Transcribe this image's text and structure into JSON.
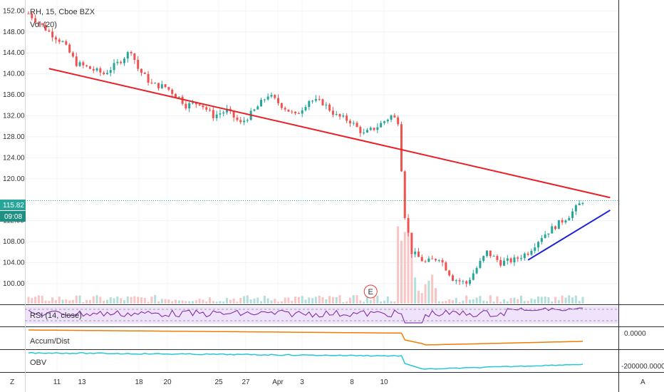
{
  "header": {
    "symbol_line": "RH, 15, Cboe BZX",
    "volume_label": "Vol (20)"
  },
  "price_axis": {
    "ticks": [
      "152.00",
      "148.00",
      "144.00",
      "140.00",
      "136.00",
      "132.00",
      "128.00",
      "124.00",
      "120.00",
      "112.00",
      "108.00",
      "104.00",
      "100.00"
    ],
    "last_price": "115.82",
    "countdown": "09:08",
    "colors": {
      "badge": "#26a69a"
    }
  },
  "indicators": {
    "rsi_label": "RSI (14, close)",
    "ad_label": "Accum/Dist",
    "ad_axis_tick": "0.0000",
    "obv_label": "OBV",
    "obv_axis_tick": "-200000.0000"
  },
  "time_axis": {
    "labels": [
      "11",
      "13",
      "18",
      "20",
      "25",
      "27",
      "Apr",
      "3",
      "8",
      "10"
    ]
  },
  "corner_labels": {
    "left": "Z",
    "right": "A"
  },
  "earnings_marker": "E",
  "colors": {
    "up": "#26a69a",
    "down": "#ef5350",
    "resistance": "#e82127",
    "support": "#1e22d6",
    "rsi": "#7b1fa2",
    "ad": "#f57c00",
    "obv": "#26c6da"
  },
  "chart_data": {
    "type": "candlestick",
    "title": "RH, 15, Cboe BZX",
    "ylim": [
      97,
      153
    ],
    "x_ticks": [
      "11",
      "13",
      "18",
      "20",
      "25",
      "27",
      "Apr",
      "3",
      "8",
      "10"
    ],
    "price_path": [
      [
        0,
        151.5
      ],
      [
        3,
        148
      ],
      [
        5,
        146
      ],
      [
        7,
        142
      ],
      [
        9,
        141
      ],
      [
        11,
        140
      ],
      [
        13,
        142
      ],
      [
        15,
        144.5
      ],
      [
        16,
        141
      ],
      [
        18,
        138
      ],
      [
        20,
        137.5
      ],
      [
        22,
        135.5
      ],
      [
        23,
        134
      ],
      [
        25,
        134.5
      ],
      [
        27,
        132
      ],
      [
        29,
        133
      ],
      [
        31,
        130.5
      ],
      [
        33,
        133
      ],
      [
        35,
        136
      ],
      [
        37,
        134
      ],
      [
        39,
        132
      ],
      [
        41,
        135
      ],
      [
        43,
        134.5
      ],
      [
        45,
        132
      ],
      [
        47,
        131
      ],
      [
        49,
        128.5
      ],
      [
        51,
        130
      ],
      [
        53,
        132
      ],
      [
        54,
        131
      ],
      [
        55,
        113
      ],
      [
        56,
        106
      ],
      [
        58,
        104
      ],
      [
        60,
        105
      ],
      [
        62,
        101
      ],
      [
        64,
        100
      ],
      [
        66,
        104
      ],
      [
        67,
        106
      ],
      [
        69,
        104
      ],
      [
        71,
        104.5
      ],
      [
        73,
        106
      ],
      [
        75,
        109
      ],
      [
        77,
        111
      ],
      [
        79,
        113
      ],
      [
        81,
        115.8
      ]
    ],
    "resistance_line": {
      "start": [
        3,
        141
      ],
      "end": [
        85,
        116.4
      ]
    },
    "support_line": {
      "start": [
        73,
        104.5
      ],
      "end": [
        85,
        114
      ]
    },
    "last_price": 115.82,
    "volume_spike_at": 55,
    "earnings_at": 50
  }
}
